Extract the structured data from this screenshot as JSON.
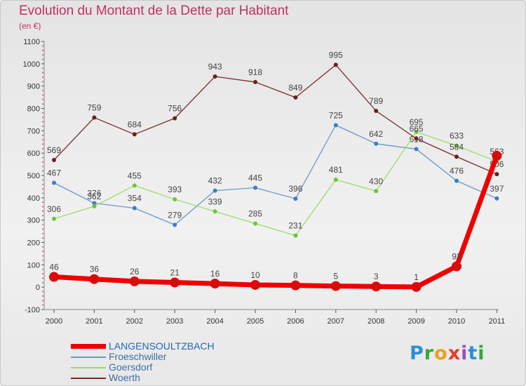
{
  "header": {
    "title": "Evolution du Montant de la Dette par Habitant",
    "unit": "(en €)"
  },
  "logo": {
    "text": "Proxiti",
    "colors": [
      "#2b8fd6",
      "#3aa53a",
      "#e8a321",
      "#e83a2a",
      "#9b4fc0",
      "#2b8fd6",
      "#3aa53a"
    ]
  },
  "chart_data": {
    "type": "line",
    "title": "Evolution du Montant de la Dette par Habitant",
    "subtitle": "(en €)",
    "xlabel": "",
    "ylabel": "",
    "categories": [
      "2000",
      "2001",
      "2002",
      "2003",
      "2004",
      "2005",
      "2006",
      "2007",
      "2008",
      "2009",
      "2010",
      "2011"
    ],
    "ylim": [
      -100,
      1100
    ],
    "yticks": [
      -100,
      0,
      100,
      200,
      300,
      400,
      500,
      600,
      700,
      800,
      900,
      1000,
      1100
    ],
    "grid": false,
    "legend_position": "bottom-left",
    "series": [
      {
        "name": "LANGENSOULTZBACH",
        "color": "#ee0000",
        "point_color": "#cc1111",
        "highlight": true,
        "values": [
          46,
          36,
          26,
          21,
          16,
          10,
          8,
          5,
          3,
          1,
          93,
          588
        ],
        "labels": [
          "46",
          "36",
          "26",
          "21",
          "16",
          "10",
          "8",
          "5",
          "3",
          "1",
          "93",
          ""
        ]
      },
      {
        "name": "Froeschwiller",
        "color": "#6699cc",
        "point_color": "#3a7fc4",
        "highlight": false,
        "values": [
          467,
          376,
          354,
          279,
          432,
          445,
          396,
          725,
          642,
          618,
          476,
          397
        ],
        "labels": [
          "467",
          "376",
          "354",
          "279",
          "432",
          "445",
          "396",
          "725",
          "642",
          "618",
          "476",
          "397"
        ]
      },
      {
        "name": "Goersdorf",
        "color": "#99dd66",
        "point_color": "#6fc43a",
        "highlight": false,
        "values": [
          306,
          362,
          455,
          393,
          339,
          285,
          231,
          481,
          430,
          695,
          633,
          563
        ],
        "labels": [
          "306",
          "362",
          "455",
          "393",
          "339",
          "285",
          "231",
          "481",
          "430",
          "695",
          "633",
          "563"
        ]
      },
      {
        "name": "Woerth",
        "color": "#7a2a2a",
        "point_color": "#6b1f1f",
        "highlight": false,
        "values": [
          569,
          759,
          684,
          756,
          943,
          918,
          849,
          995,
          789,
          665,
          584,
          506
        ],
        "labels": [
          "569",
          "759",
          "684",
          "756",
          "943",
          "918",
          "849",
          "995",
          "789",
          "665",
          "584",
          "506"
        ]
      }
    ]
  }
}
